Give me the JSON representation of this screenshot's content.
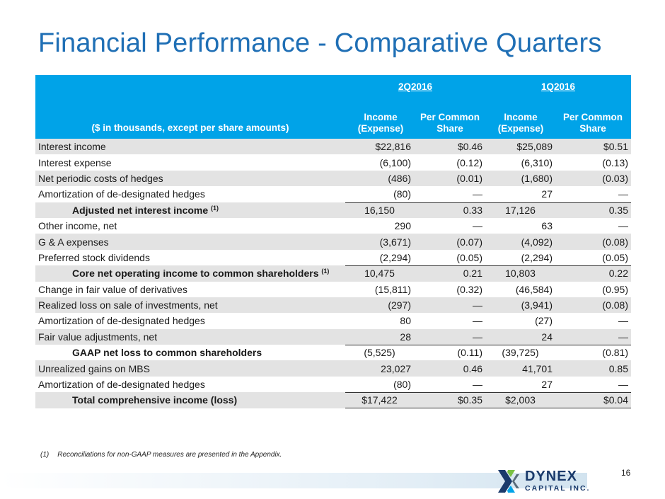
{
  "title": "Financial Performance - Comparative Quarters",
  "table": {
    "desc_header": "($ in thousands, except per share amounts)",
    "quarters": [
      "2Q2016",
      "1Q2016"
    ],
    "col_income": "Income (Expense)",
    "col_share": "Per Common Share",
    "rows": [
      {
        "label": "Interest income",
        "sup": "",
        "values": [
          "$22,816",
          "$0.46",
          "$25,089",
          "$0.51"
        ]
      },
      {
        "label": "Interest expense",
        "sup": "",
        "values": [
          "(6,100)",
          "(0.12)",
          "(6,310)",
          "(0.13)"
        ]
      },
      {
        "label": "Net periodic costs of hedges",
        "sup": "",
        "values": [
          "(486)",
          "(0.01)",
          "(1,680)",
          "(0.03)"
        ]
      },
      {
        "label": "Amortization of de-designated hedges",
        "sup": "",
        "values": [
          "(80)",
          "—",
          "27",
          "—"
        ]
      },
      {
        "label": "Adjusted net interest income",
        "sup": "(1)",
        "values": [
          "16,150",
          "0.33",
          "17,126",
          "0.35"
        ]
      },
      {
        "label": "Other income, net",
        "sup": "",
        "values": [
          "290",
          "—",
          "63",
          "—"
        ]
      },
      {
        "label": "G & A expenses",
        "sup": "",
        "values": [
          "(3,671)",
          "(0.07)",
          "(4,092)",
          "(0.08)"
        ]
      },
      {
        "label": "Preferred stock dividends",
        "sup": "",
        "values": [
          "(2,294)",
          "(0.05)",
          "(2,294)",
          "(0.05)"
        ]
      },
      {
        "label": "Core net operating income to common shareholders",
        "sup": "(1)",
        "values": [
          "10,475",
          "0.21",
          "10,803",
          "0.22"
        ]
      },
      {
        "label": "Change in fair value of derivatives",
        "sup": "",
        "values": [
          "(15,811)",
          "(0.32)",
          "(46,584)",
          "(0.95)"
        ]
      },
      {
        "label": "Realized loss on sale of investments, net",
        "sup": "",
        "values": [
          "(297)",
          "—",
          "(3,941)",
          "(0.08)"
        ]
      },
      {
        "label": "Amortization of de-designated hedges",
        "sup": "",
        "values": [
          "80",
          "—",
          "(27)",
          "—"
        ]
      },
      {
        "label": "Fair value adjustments, net",
        "sup": "",
        "values": [
          "28",
          "—",
          "24",
          "—"
        ]
      },
      {
        "label": "GAAP net loss to common shareholders",
        "sup": "",
        "values": [
          "(5,525)",
          "(0.11)",
          "(39,725)",
          "(0.81)"
        ]
      },
      {
        "label": "Unrealized gains on MBS",
        "sup": "",
        "values": [
          "23,027",
          "0.46",
          "41,701",
          "0.85"
        ]
      },
      {
        "label": "Amortization of de-designated hedges",
        "sup": "",
        "values": [
          "(80)",
          "—",
          "27",
          "—"
        ]
      },
      {
        "label": "Total comprehensive income (loss)",
        "sup": "",
        "values": [
          "$17,422",
          "$0.35",
          "$2,003",
          "$0.04"
        ]
      }
    ]
  },
  "footnote": {
    "num": "(1)",
    "text": "Reconciliations for non-GAAP measures are presented in the Appendix."
  },
  "page_number": "16",
  "logo": {
    "name": "DYNEX",
    "sub": "CAPITAL INC."
  },
  "colors": {
    "title": "#1f6fb5",
    "header_bg": "#00a3e8",
    "shade": "#e3e3e3",
    "logo_text": "#1a3a6b"
  }
}
